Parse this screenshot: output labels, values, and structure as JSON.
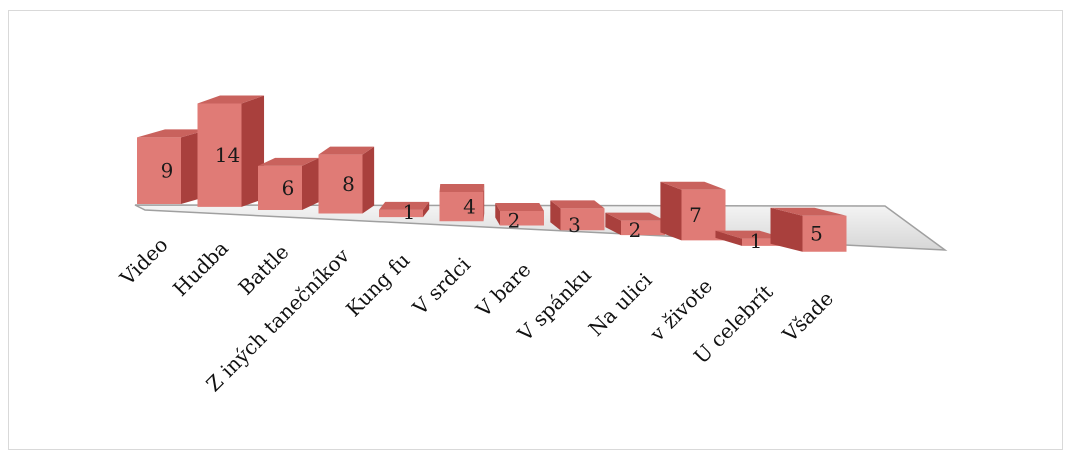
{
  "chart_data": {
    "type": "bar",
    "style": "3d-column",
    "title": "",
    "xlabel": "",
    "ylabel": "",
    "legend": "none",
    "grid": false,
    "categories": [
      "Video",
      "Hudba",
      "Battle",
      "Z iných tanečníkov",
      "Kung fu",
      "V srdci",
      "V bare",
      "V spánku",
      "Na ulici",
      "v živote",
      "U celebrít",
      "Všade"
    ],
    "values": [
      9,
      14,
      6,
      8,
      1,
      4,
      2,
      3,
      2,
      7,
      1,
      5
    ],
    "colors": {
      "front": "#e07b76",
      "side": "#a9403d",
      "top": "#c9625d",
      "floor": "#e9e9e9",
      "floor_edge": "#9a9a9a"
    }
  }
}
